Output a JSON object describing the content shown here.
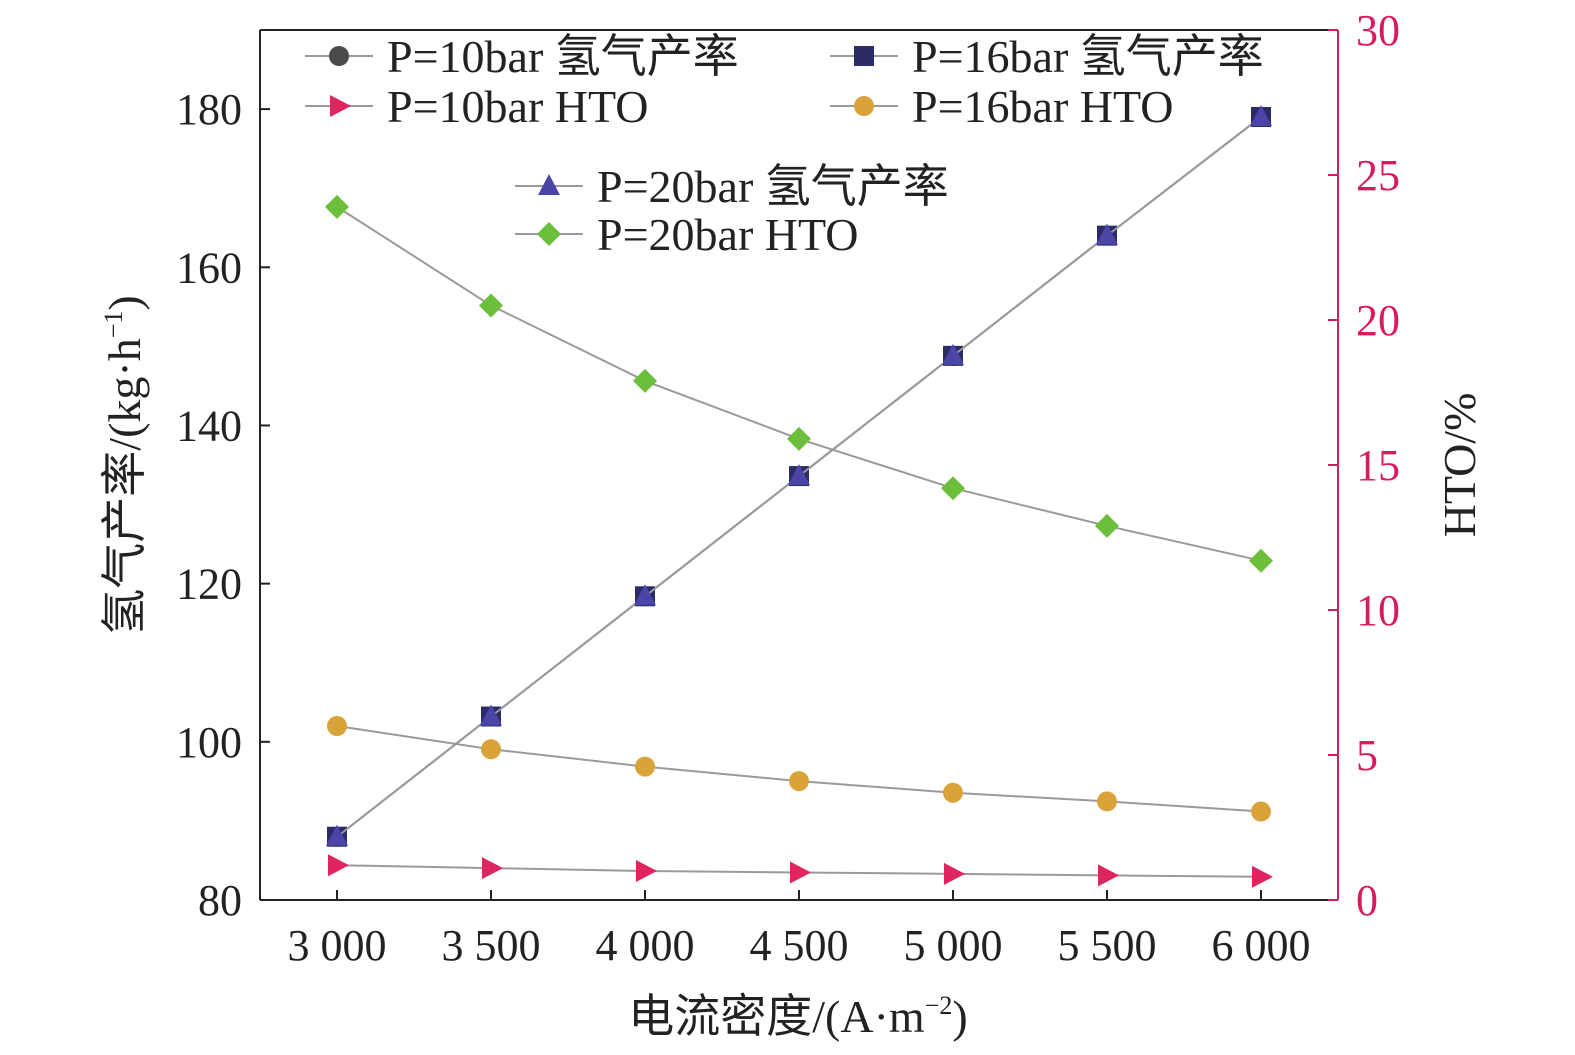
{
  "chart_data": {
    "type": "line",
    "xlabel": "电流密度/(A·m",
    "xlabel_sup": "−2",
    "xlabel_tail": ")",
    "ylabel_left": "氢气产率/(kg·h",
    "ylabel_left_sup": "−1",
    "ylabel_left_tail": ")",
    "ylabel_right": "HTO/%",
    "x": [
      3000,
      3500,
      4000,
      4500,
      5000,
      5500,
      6000
    ],
    "x_tick_labels": [
      "3 000",
      "3 500",
      "4 000",
      "4 500",
      "5 000",
      "5 500",
      "6 000"
    ],
    "xlim": [
      2750,
      6250
    ],
    "y_left_lim": [
      80,
      190
    ],
    "y_left_ticks": [
      80,
      100,
      120,
      140,
      160,
      180
    ],
    "y_right_lim": [
      0,
      30
    ],
    "y_right_ticks": [
      0,
      5,
      10,
      15,
      20,
      25,
      30
    ],
    "grid": false,
    "legend_placement": "top",
    "right_axis_color": "#d81b60",
    "series": [
      {
        "name": "P=10bar 氢气产率",
        "axis": "left",
        "marker": "circle",
        "color": "#4a4a4a",
        "values": [
          88,
          103.2,
          118.4,
          133.6,
          148.8,
          164,
          179
        ]
      },
      {
        "name": "P=16bar 氢气产率",
        "axis": "left",
        "marker": "square",
        "color": "#2b2b66",
        "values": [
          88,
          103.2,
          118.4,
          133.6,
          148.8,
          164,
          179
        ]
      },
      {
        "name": "P=10bar HTO",
        "axis": "right",
        "marker": "triangle-right",
        "color": "#e0245e",
        "values": [
          1.2,
          1.1,
          1.0,
          0.95,
          0.9,
          0.85,
          0.8
        ]
      },
      {
        "name": "P=16bar HTO",
        "axis": "right",
        "marker": "circle",
        "color": "#d9a33a",
        "values": [
          6.0,
          5.2,
          4.6,
          4.1,
          3.7,
          3.4,
          3.05
        ]
      },
      {
        "name": "P=20bar 氢气产率",
        "axis": "left",
        "marker": "triangle-up",
        "color": "#4b45a8",
        "values": [
          88,
          103.2,
          118.4,
          133.6,
          148.8,
          164,
          179
        ]
      },
      {
        "name": "P=20bar HTO",
        "axis": "right",
        "marker": "diamond",
        "color": "#6cbf3a",
        "values": [
          23.9,
          20.5,
          17.9,
          15.9,
          14.2,
          12.9,
          11.7
        ]
      }
    ]
  }
}
